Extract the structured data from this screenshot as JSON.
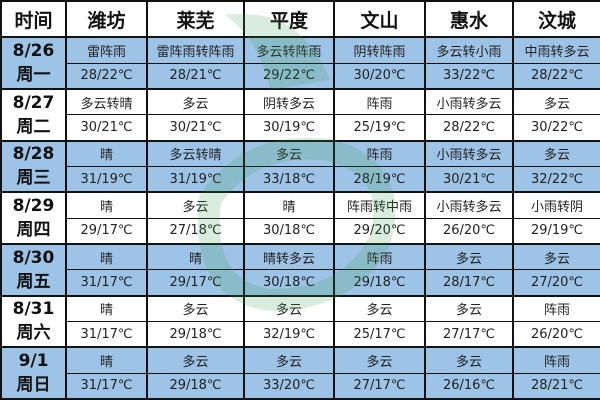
{
  "header": [
    "时间",
    "潍坊",
    "莱芜",
    "平度",
    "文山",
    "惠水",
    "汶城"
  ],
  "days": [
    {
      "date": "8/26",
      "weekday": "周一",
      "weather": [
        "雷阵雨",
        "雷阵雨转阵雨",
        "多云转阵雨",
        "阴转阵雨",
        "多云转小雨",
        "中雨转多云"
      ],
      "temps": [
        "28/22℃",
        "28/21℃",
        "29/22℃",
        "30/20℃",
        "33/22℃",
        "28/22℃"
      ]
    },
    {
      "date": "8/27",
      "weekday": "周二",
      "weather": [
        "多云转晴",
        "多云",
        "阴转多云",
        "阵雨",
        "小雨转多云",
        "多云"
      ],
      "temps": [
        "30/21℃",
        "30/21℃",
        "30/19℃",
        "25/19℃",
        "28/22℃",
        "30/22℃"
      ]
    },
    {
      "date": "8/28",
      "weekday": "周三",
      "weather": [
        "晴",
        "多云转晴",
        "多云",
        "阵雨",
        "小雨转多云",
        "多云"
      ],
      "temps": [
        "31/19℃",
        "31/19℃",
        "33/18℃",
        "28/19℃",
        "30/21℃",
        "32/22℃"
      ]
    },
    {
      "date": "8/29",
      "weekday": "周四",
      "weather": [
        "晴",
        "多云",
        "晴",
        "阵雨转中雨",
        "小雨转多云",
        "小雨转阴"
      ],
      "temps": [
        "29/17℃",
        "27/18℃",
        "30/18℃",
        "29/20℃",
        "26/20℃",
        "29/19℃"
      ]
    },
    {
      "date": "8/30",
      "weekday": "周五",
      "weather": [
        "晴",
        "晴",
        "晴转多云",
        "阵雨",
        "多云",
        "多云"
      ],
      "temps": [
        "31/17℃",
        "29/17℃",
        "30/18℃",
        "29/18℃",
        "28/17℃",
        "27/20℃"
      ]
    },
    {
      "date": "8/31",
      "weekday": "周六",
      "weather": [
        "晴",
        "多云",
        "多云",
        "多云",
        "多云",
        "阵雨"
      ],
      "temps": [
        "31/17℃",
        "29/18℃",
        "32/19℃",
        "25/17℃",
        "27/17℃",
        "26/20℃"
      ]
    },
    {
      "date": "9/1",
      "weekday": "周日",
      "weather": [
        "晴",
        "多云",
        "多云",
        "多云",
        "多云",
        "阵雨"
      ],
      "temps": [
        "31/17℃",
        "29/18℃",
        "33/20℃",
        "27/17℃",
        "26/16℃",
        "28/21℃"
      ]
    }
  ],
  "watermark": "中国天气网",
  "colors": {
    "highlight": "#9dc3e6",
    "border": "#111111",
    "watermark": "#3a9a4a"
  }
}
